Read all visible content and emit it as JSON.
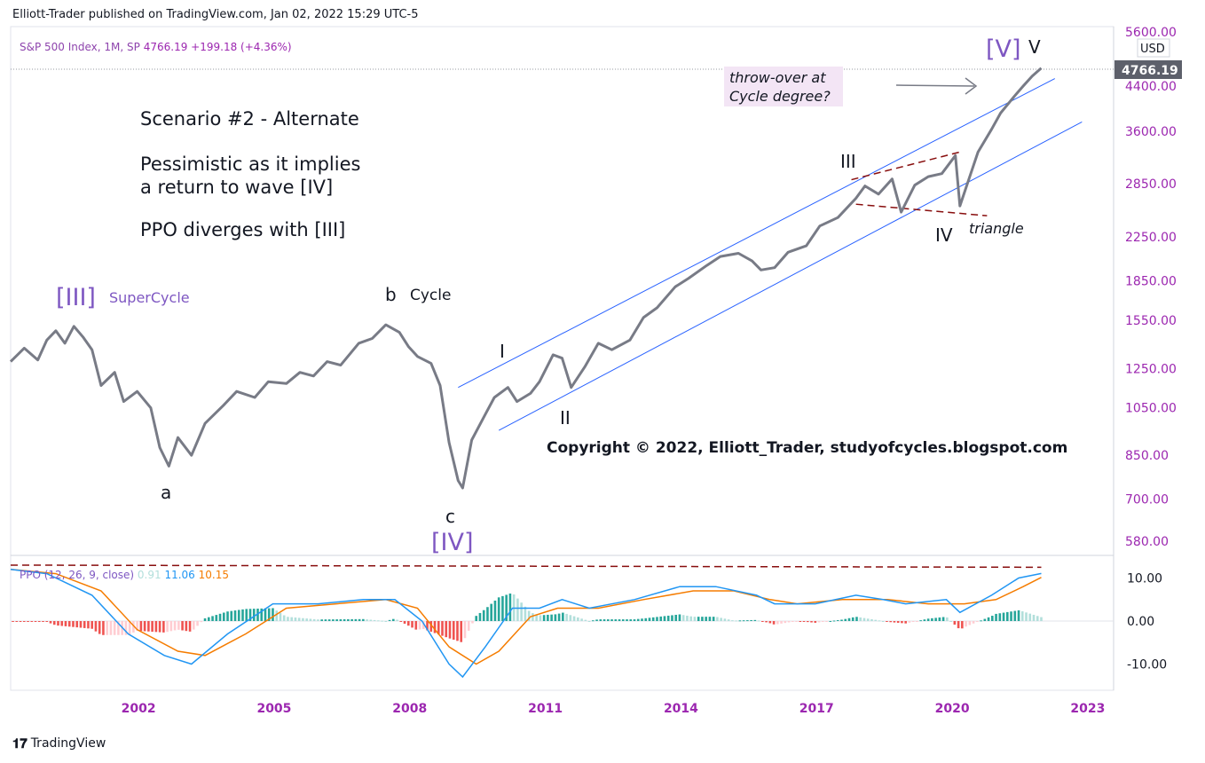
{
  "header": {
    "published": "Elliott-Trader published on TradingView.com, Jan 02, 2022 15:29 UTC-5"
  },
  "legend": {
    "symbol": "S&P 500 Index, 1M, SP",
    "last": "4766.19",
    "change": "+199.18 (+4.36%)"
  },
  "price_axis": {
    "currency": "USD",
    "current": "4766.19",
    "ticks": [
      "5600.00",
      "4400.00",
      "3600.00",
      "2850.00",
      "2250.00",
      "1850.00",
      "1550.00",
      "1250.00",
      "1050.00",
      "850.00",
      "700.00",
      "580.00"
    ]
  },
  "ppo_axis": {
    "ticks": [
      "10.00",
      "0.00",
      "-10.00"
    ]
  },
  "ppo_legend": {
    "name": "PPO (12, 26, 9, close)",
    "hist": "0.91",
    "ppo": "11.06",
    "signal": "10.15"
  },
  "time_axis": {
    "ticks": [
      "2002",
      "2005",
      "2008",
      "2011",
      "2014",
      "2017",
      "2020",
      "2023"
    ]
  },
  "annotations": {
    "scenario": "Scenario #2 - Alternate",
    "pess1": "Pessimistic as it implies",
    "pess2": "a return to wave [IV]",
    "ppo_div": "PPO diverges with [III]",
    "w3": "[III]",
    "supercycle": "SuperCycle",
    "a": "a",
    "b": "b",
    "cycle": "Cycle",
    "c": "c",
    "w4": "[IV]",
    "I": "I",
    "II": "II",
    "III": "III",
    "IV": "IV",
    "V": "V",
    "w5": "[V]",
    "triangle": "triangle",
    "throw1": "throw-over at",
    "throw2": "Cycle degree?",
    "copyright": "Copyright © 2022, Elliott_Trader, studyofcycles.blogspot.com"
  },
  "footer": {
    "brand": "TradingView"
  },
  "colors": {
    "price": "#787b86",
    "channel": "#2962ff",
    "ppo": "#2196f3",
    "signal": "#f57c00",
    "accent": "#7e57c2",
    "dashed": "#880e0e",
    "hist_pos": "#26a69a",
    "hist_neg": "#ef5350"
  },
  "chart_data": {
    "type": "line",
    "title": "S&P 500 Index, 1M, SP",
    "x_range": [
      1999.2,
      2023.6
    ],
    "y_scale": "log",
    "series": [
      {
        "name": "S&P 500 Index, 1M, SP",
        "points": [
          [
            1999.2,
            1290
          ],
          [
            1999.5,
            1370
          ],
          [
            1999.8,
            1300
          ],
          [
            2000.0,
            1420
          ],
          [
            2000.2,
            1480
          ],
          [
            2000.4,
            1400
          ],
          [
            2000.6,
            1510
          ],
          [
            2000.8,
            1440
          ],
          [
            2001.0,
            1360
          ],
          [
            2001.2,
            1160
          ],
          [
            2001.5,
            1230
          ],
          [
            2001.7,
            1080
          ],
          [
            2002.0,
            1130
          ],
          [
            2002.3,
            1050
          ],
          [
            2002.5,
            880
          ],
          [
            2002.7,
            810
          ],
          [
            2002.9,
            920
          ],
          [
            2003.2,
            850
          ],
          [
            2003.5,
            980
          ],
          [
            2003.9,
            1060
          ],
          [
            2004.2,
            1130
          ],
          [
            2004.6,
            1100
          ],
          [
            2004.9,
            1180
          ],
          [
            2005.3,
            1170
          ],
          [
            2005.6,
            1230
          ],
          [
            2005.9,
            1210
          ],
          [
            2006.2,
            1290
          ],
          [
            2006.5,
            1270
          ],
          [
            2006.9,
            1400
          ],
          [
            2007.2,
            1430
          ],
          [
            2007.5,
            1520
          ],
          [
            2007.8,
            1470
          ],
          [
            2008.0,
            1380
          ],
          [
            2008.2,
            1320
          ],
          [
            2008.5,
            1280
          ],
          [
            2008.7,
            1160
          ],
          [
            2008.9,
            900
          ],
          [
            2009.1,
            760
          ],
          [
            2009.2,
            735
          ],
          [
            2009.4,
            910
          ],
          [
            2009.7,
            1020
          ],
          [
            2009.9,
            1100
          ],
          [
            2010.2,
            1150
          ],
          [
            2010.4,
            1080
          ],
          [
            2010.7,
            1120
          ],
          [
            2010.9,
            1180
          ],
          [
            2011.2,
            1330
          ],
          [
            2011.4,
            1310
          ],
          [
            2011.6,
            1150
          ],
          [
            2011.9,
            1260
          ],
          [
            2012.2,
            1400
          ],
          [
            2012.5,
            1360
          ],
          [
            2012.9,
            1420
          ],
          [
            2013.2,
            1570
          ],
          [
            2013.5,
            1640
          ],
          [
            2013.9,
            1800
          ],
          [
            2014.2,
            1870
          ],
          [
            2014.6,
            1980
          ],
          [
            2014.9,
            2060
          ],
          [
            2015.3,
            2090
          ],
          [
            2015.6,
            2020
          ],
          [
            2015.8,
            1940
          ],
          [
            2016.1,
            1960
          ],
          [
            2016.4,
            2100
          ],
          [
            2016.8,
            2160
          ],
          [
            2017.1,
            2360
          ],
          [
            2017.5,
            2450
          ],
          [
            2017.9,
            2670
          ],
          [
            2018.1,
            2820
          ],
          [
            2018.4,
            2720
          ],
          [
            2018.7,
            2910
          ],
          [
            2018.9,
            2510
          ],
          [
            2019.2,
            2830
          ],
          [
            2019.5,
            2940
          ],
          [
            2019.8,
            2980
          ],
          [
            2020.1,
            3230
          ],
          [
            2020.2,
            2580
          ],
          [
            2020.4,
            2910
          ],
          [
            2020.6,
            3280
          ],
          [
            2020.9,
            3630
          ],
          [
            2021.1,
            3900
          ],
          [
            2021.4,
            4200
          ],
          [
            2021.6,
            4400
          ],
          [
            2021.8,
            4600
          ],
          [
            2022.0,
            4766
          ]
        ]
      },
      {
        "name": "PPO (12, 26, 9, close)",
        "points": [
          [
            1999.2,
            12
          ],
          [
            2000.0,
            11
          ],
          [
            2001.0,
            6
          ],
          [
            2001.8,
            -3
          ],
          [
            2002.6,
            -8
          ],
          [
            2003.2,
            -10
          ],
          [
            2004.0,
            -3
          ],
          [
            2005.0,
            4
          ],
          [
            2006.0,
            4
          ],
          [
            2007.0,
            5
          ],
          [
            2007.7,
            5
          ],
          [
            2008.3,
            0
          ],
          [
            2008.9,
            -10
          ],
          [
            2009.2,
            -13
          ],
          [
            2009.7,
            -6
          ],
          [
            2010.3,
            3
          ],
          [
            2010.9,
            3
          ],
          [
            2011.4,
            5
          ],
          [
            2012.0,
            3
          ],
          [
            2013.0,
            5
          ],
          [
            2014.0,
            8
          ],
          [
            2014.8,
            8
          ],
          [
            2015.7,
            6
          ],
          [
            2016.1,
            4
          ],
          [
            2017.0,
            4
          ],
          [
            2017.9,
            6
          ],
          [
            2018.5,
            5
          ],
          [
            2019.0,
            4
          ],
          [
            2019.9,
            5
          ],
          [
            2020.2,
            2
          ],
          [
            2020.9,
            6
          ],
          [
            2021.5,
            10
          ],
          [
            2022.0,
            11.06
          ]
        ]
      },
      {
        "name": "signal",
        "points": [
          [
            1999.2,
            12
          ],
          [
            2000.2,
            11
          ],
          [
            2001.2,
            7
          ],
          [
            2002.0,
            -2
          ],
          [
            2002.9,
            -7
          ],
          [
            2003.5,
            -8
          ],
          [
            2004.4,
            -3
          ],
          [
            2005.3,
            3
          ],
          [
            2006.4,
            4
          ],
          [
            2007.5,
            5
          ],
          [
            2008.2,
            3
          ],
          [
            2008.9,
            -6
          ],
          [
            2009.5,
            -10
          ],
          [
            2010.0,
            -7
          ],
          [
            2010.7,
            1
          ],
          [
            2011.3,
            3
          ],
          [
            2012.2,
            3
          ],
          [
            2013.2,
            5
          ],
          [
            2014.3,
            7
          ],
          [
            2015.2,
            7
          ],
          [
            2016.0,
            5
          ],
          [
            2016.6,
            4
          ],
          [
            2017.6,
            5
          ],
          [
            2018.6,
            5
          ],
          [
            2019.5,
            4
          ],
          [
            2020.3,
            4
          ],
          [
            2021.0,
            5
          ],
          [
            2021.6,
            8
          ],
          [
            2022.0,
            10.15
          ]
        ]
      }
    ],
    "ppo_hist": [
      0.91
    ]
  }
}
